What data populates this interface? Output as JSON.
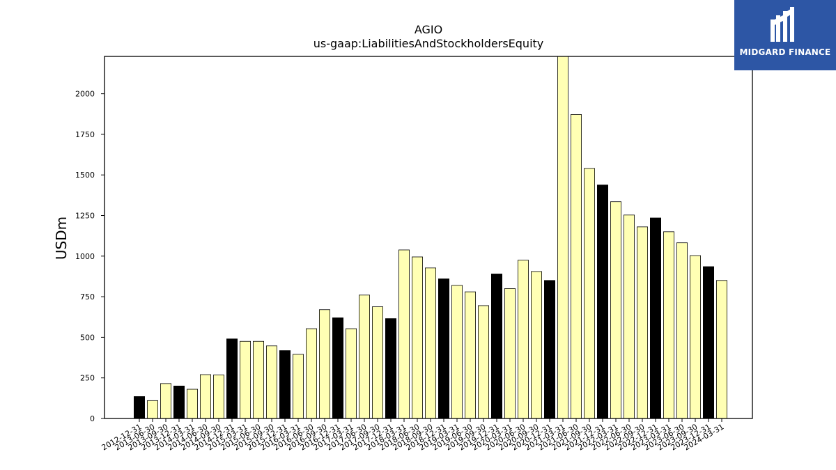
{
  "chart_data": {
    "type": "bar",
    "title": "AGIO",
    "subtitle": "us-gaap:LiabilitiesAndStockholdersEquity",
    "xlabel": "",
    "ylabel": "USDm",
    "ylim": [
      0,
      2230
    ],
    "yticks": [
      0,
      250,
      500,
      750,
      1000,
      1250,
      1500,
      1750,
      2000
    ],
    "grid": false,
    "categories": [
      "2012-12-31",
      "2013-06-30",
      "2013-09-30",
      "2013-12-31",
      "2014-03-31",
      "2014-06-30",
      "2014-09-30",
      "2014-12-31",
      "2015-03-31",
      "2015-06-30",
      "2015-09-30",
      "2015-12-31",
      "2016-03-31",
      "2016-06-30",
      "2016-09-30",
      "2016-12-31",
      "2017-03-31",
      "2017-06-30",
      "2017-09-30",
      "2017-12-31",
      "2018-03-31",
      "2018-06-30",
      "2018-09-30",
      "2018-12-31",
      "2019-03-31",
      "2019-06-30",
      "2019-09-30",
      "2019-12-31",
      "2020-03-31",
      "2020-06-30",
      "2020-09-30",
      "2020-12-31",
      "2021-03-31",
      "2021-06-30",
      "2021-09-30",
      "2021-12-31",
      "2022-03-31",
      "2022-06-30",
      "2022-09-30",
      "2022-12-31",
      "2023-03-31",
      "2023-06-30",
      "2023-09-30",
      "2023-12-31",
      "2024-03-31"
    ],
    "values": [
      135,
      110,
      215,
      200,
      180,
      270,
      268,
      490,
      475,
      475,
      447,
      418,
      395,
      553,
      670,
      620,
      553,
      760,
      688,
      615,
      1038,
      995,
      927,
      860,
      820,
      780,
      695,
      890,
      800,
      975,
      905,
      850,
      2230,
      1872,
      1540,
      1438,
      1335,
      1253,
      1180,
      1235,
      1150,
      1082,
      1003,
      935,
      850
    ],
    "highlight": [
      true,
      false,
      false,
      true,
      false,
      false,
      false,
      true,
      false,
      false,
      false,
      true,
      false,
      false,
      false,
      true,
      false,
      false,
      false,
      true,
      false,
      false,
      false,
      true,
      false,
      false,
      false,
      true,
      false,
      false,
      false,
      true,
      false,
      false,
      false,
      true,
      false,
      false,
      false,
      true,
      false,
      false,
      false,
      true,
      false
    ],
    "colors": {
      "bar": "#ffffb4",
      "highlight": "#000000",
      "edge": "#000000"
    }
  },
  "logo": {
    "text": "MIDGARD FINANCE",
    "background": "#2d56a5"
  }
}
